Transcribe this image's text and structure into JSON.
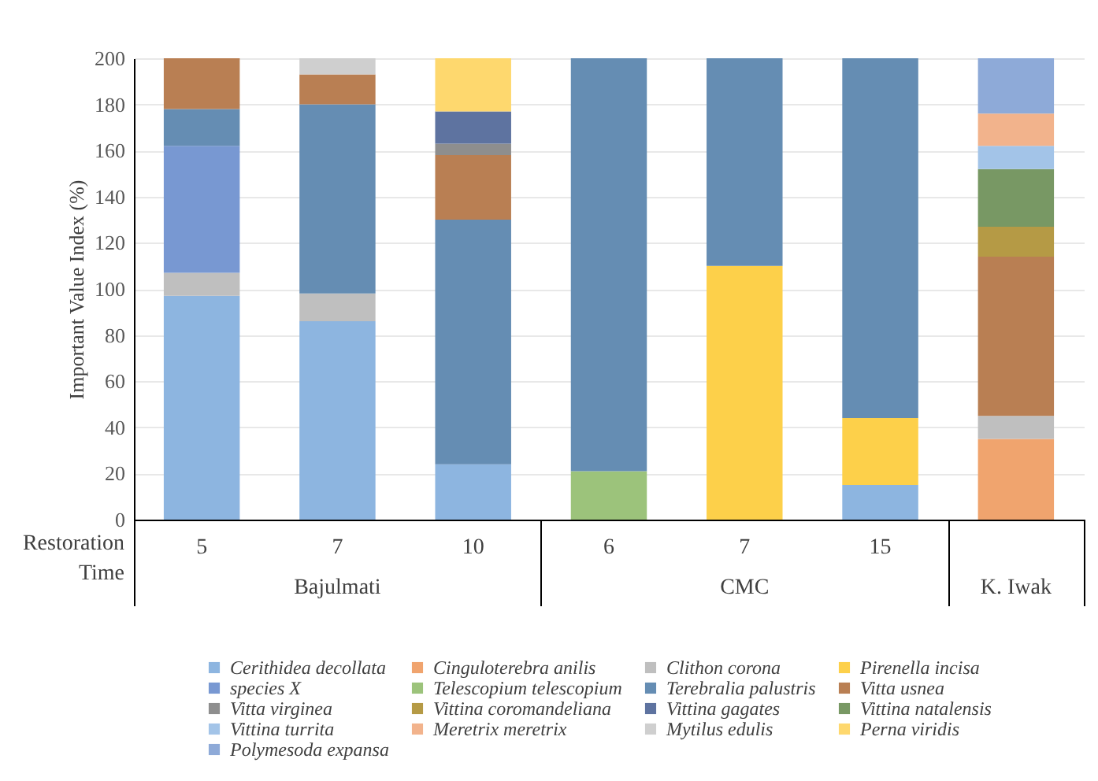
{
  "chart_data": {
    "type": "bar",
    "stacked": true,
    "ylabel": "Important Value Index (%)",
    "xlabel": "Restoration Time",
    "categories": [
      "5",
      "7",
      "10",
      "6",
      "7",
      "15",
      null
    ],
    "annotations": [
      "Bajulmati",
      "CMC",
      "K. Iwak"
    ],
    "ylim": [
      0,
      200
    ],
    "yticks": [
      0,
      20,
      40,
      60,
      80,
      100,
      120,
      140,
      160,
      180,
      200
    ],
    "grid": "y",
    "legend": "bottom",
    "series": [
      {
        "name": "Cerithidea decollata",
        "color": "#8db5e0",
        "values": [
          97,
          86,
          24,
          null,
          null,
          15,
          null
        ]
      },
      {
        "name": "Cinguloterebra anilis",
        "color": "#f0a46e",
        "values": [
          null,
          null,
          null,
          null,
          null,
          null,
          35
        ]
      },
      {
        "name": "Clithon corona",
        "color": "#bfbfbf",
        "values": [
          10,
          12,
          null,
          null,
          null,
          null,
          10
        ]
      },
      {
        "name": "Pirenella incisa",
        "color": "#fdd04a",
        "values": [
          null,
          null,
          null,
          null,
          110,
          29,
          null
        ]
      },
      {
        "name": "species X",
        "color": "#7898d2",
        "values": [
          55,
          null,
          null,
          null,
          null,
          null,
          null
        ]
      },
      {
        "name": "Telescopium telescopium",
        "color": "#9cc37b",
        "values": [
          null,
          null,
          null,
          21,
          null,
          null,
          null
        ]
      },
      {
        "name": "Terebralia palustris",
        "color": "#658db3",
        "values": [
          16,
          82,
          106,
          179,
          90,
          156,
          null
        ]
      },
      {
        "name": "Vitta usnea",
        "color": "#b97f53",
        "values": [
          22,
          13,
          28,
          null,
          null,
          null,
          69
        ]
      },
      {
        "name": "Vitta virginea",
        "color": "#8e8e8e",
        "values": [
          null,
          null,
          5,
          null,
          null,
          null,
          null
        ]
      },
      {
        "name": "Vittina coromandeliana",
        "color": "#b59a45",
        "values": [
          null,
          null,
          null,
          null,
          null,
          null,
          13
        ]
      },
      {
        "name": "Vittina gagates",
        "color": "#5e73a0",
        "values": [
          null,
          null,
          14,
          null,
          null,
          null,
          null
        ]
      },
      {
        "name": "Vittina natalensis",
        "color": "#789864",
        "values": [
          null,
          null,
          null,
          null,
          null,
          null,
          25
        ]
      },
      {
        "name": "Vittina turrita",
        "color": "#a3c4e8",
        "values": [
          null,
          null,
          null,
          null,
          null,
          null,
          10
        ]
      },
      {
        "name": "Meretrix meretrix",
        "color": "#f2b38c",
        "values": [
          null,
          null,
          null,
          null,
          null,
          null,
          14
        ]
      },
      {
        "name": "Mytilus edulis",
        "color": "#cfcfcf",
        "values": [
          null,
          7,
          null,
          null,
          null,
          null,
          null
        ]
      },
      {
        "name": "Perna viridis",
        "color": "#fed86e",
        "values": [
          null,
          null,
          23,
          null,
          null,
          null,
          null
        ]
      },
      {
        "name": "Polymesoda expansa",
        "color": "#8eaad8",
        "values": [
          null,
          null,
          null,
          null,
          null,
          null,
          24
        ]
      }
    ]
  }
}
